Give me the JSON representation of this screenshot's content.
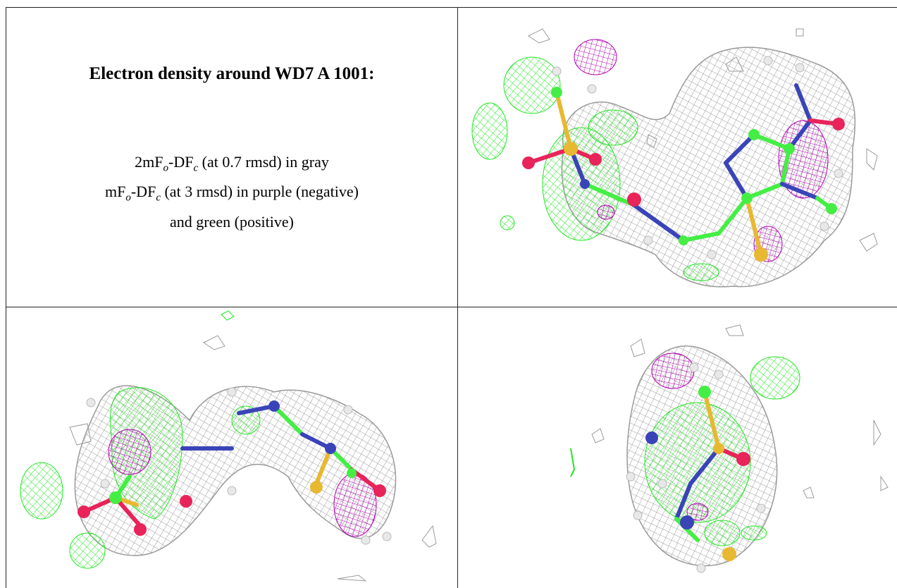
{
  "caption": {
    "title": "Electron density around WD7 A 1001:",
    "line1_prefix": "2mF",
    "line1_sub_o": "o",
    "line1_mid": "-DF",
    "line1_sub_c": "c",
    "line1_suffix": " (at 0.7 rmsd) in gray",
    "line2_prefix": "mF",
    "line2_sub_o": "o",
    "line2_mid": "-DF",
    "line2_sub_c": "c",
    "line2_suffix": " (at 3 rmsd) in purple (negative)",
    "line3": "and green (positive)"
  },
  "colors": {
    "gray_mesh": "#9a9a9a",
    "green_mesh": "#22e622",
    "purple_mesh": "#b000b0",
    "carbon": "#44ee44",
    "nitrogen": "#3a44b8",
    "oxygen": "#e8245a",
    "sulfur": "#e8b830",
    "hydrogen": "#e8e8e8"
  },
  "panels": [
    {
      "view": "ligand-view-1"
    },
    {
      "view": "ligand-view-2"
    },
    {
      "view": "ligand-view-3"
    }
  ]
}
